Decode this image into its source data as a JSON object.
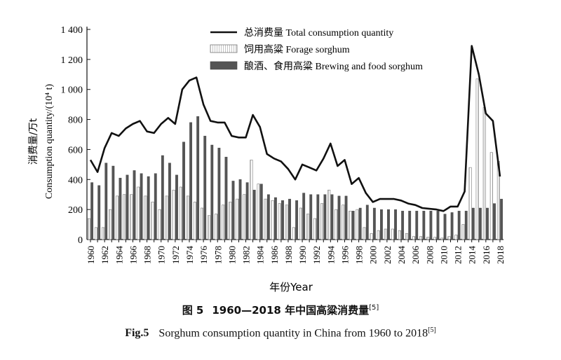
{
  "chart_data": {
    "type": "bar",
    "x": [
      1960,
      1961,
      1962,
      1963,
      1964,
      1965,
      1966,
      1967,
      1968,
      1969,
      1970,
      1971,
      1972,
      1973,
      1974,
      1975,
      1976,
      1977,
      1978,
      1979,
      1980,
      1981,
      1982,
      1983,
      1984,
      1985,
      1986,
      1987,
      1988,
      1989,
      1990,
      1991,
      1992,
      1993,
      1994,
      1995,
      1996,
      1997,
      1998,
      1999,
      2000,
      2001,
      2002,
      2003,
      2004,
      2005,
      2006,
      2007,
      2008,
      2009,
      2010,
      2011,
      2012,
      2013,
      2014,
      2015,
      2016,
      2017,
      2018
    ],
    "series": [
      {
        "name": "总消费量 Total consumption quantity",
        "kind": "line",
        "color": "#111111",
        "values": [
          530,
          450,
          610,
          710,
          690,
          740,
          770,
          790,
          720,
          710,
          770,
          810,
          770,
          1000,
          1060,
          1080,
          900,
          790,
          780,
          780,
          690,
          680,
          680,
          830,
          750,
          570,
          540,
          520,
          470,
          400,
          500,
          480,
          460,
          540,
          640,
          490,
          530,
          370,
          410,
          310,
          250,
          270,
          270,
          270,
          260,
          240,
          230,
          210,
          205,
          200,
          190,
          220,
          220,
          320,
          1290,
          1100,
          840,
          790,
          420
        ]
      },
      {
        "name": "饲用高粱 Forage sorghum",
        "kind": "bar",
        "style": "hatched",
        "values": [
          140,
          80,
          80,
          200,
          290,
          300,
          300,
          350,
          290,
          250,
          200,
          290,
          330,
          350,
          290,
          250,
          210,
          160,
          170,
          230,
          250,
          270,
          300,
          530,
          370,
          270,
          260,
          240,
          230,
          80,
          210,
          170,
          140,
          240,
          330,
          200,
          230,
          190,
          200,
          80,
          40,
          60,
          70,
          70,
          60,
          40,
          20,
          20,
          15,
          15,
          10,
          20,
          30,
          100,
          480,
          1070,
          880,
          580,
          520
        ]
      },
      {
        "name": "酿酒、食用高粱 Brewing and food sorghum",
        "kind": "bar",
        "style": "solid",
        "values": [
          380,
          360,
          510,
          490,
          410,
          430,
          460,
          440,
          420,
          440,
          560,
          510,
          430,
          650,
          780,
          820,
          690,
          630,
          610,
          550,
          390,
          400,
          380,
          330,
          370,
          300,
          280,
          260,
          270,
          260,
          310,
          300,
          300,
          300,
          300,
          290,
          290,
          190,
          210,
          230,
          210,
          200,
          200,
          200,
          190,
          190,
          190,
          190,
          190,
          190,
          170,
          180,
          190,
          190,
          210,
          210,
          210,
          240,
          270
        ]
      }
    ],
    "ylim": [
      0,
      1400
    ],
    "yticks": [
      "0",
      "200",
      "400",
      "600",
      "800",
      "1 000",
      "1 200",
      "1 400"
    ],
    "xtick_labels": [
      "1960",
      "1962",
      "1964",
      "1966",
      "1968",
      "1970",
      "1972",
      "1974",
      "1976",
      "1978",
      "1980",
      "1982",
      "1984",
      "1986",
      "1988",
      "1990",
      "1992",
      "1994",
      "1996",
      "1998",
      "2000",
      "2002",
      "2004",
      "2006",
      "2008",
      "2010",
      "2012",
      "2014",
      "2016",
      "2018"
    ],
    "ylabel_cn": "消费量/万t",
    "ylabel_en": "Consumption quantity/(10⁴ t)",
    "xlabel": "年份Year",
    "grid": false,
    "legend_placement": "top-center"
  },
  "caption": {
    "cn_fig": "图 5",
    "cn_text": "1960—2018 年中国高粱消费量",
    "cn_ref": "[5]",
    "en_fig": "Fig.5",
    "en_text": "Sorghum consumption quantity in China from 1960 to 2018",
    "en_ref": "[5]"
  }
}
